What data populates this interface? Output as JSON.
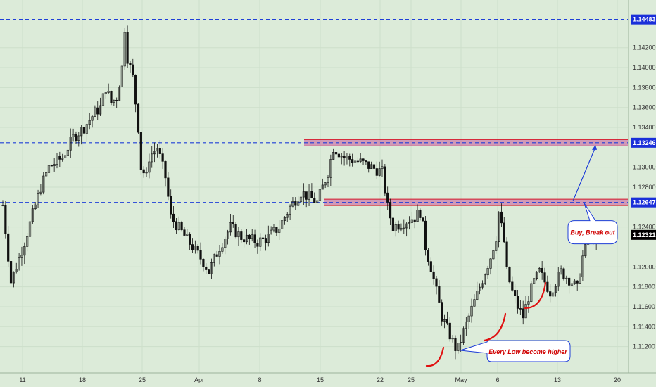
{
  "chart_data": {
    "type": "candlestick",
    "x_ticks": [
      "11",
      "18",
      "25",
      "Apr",
      "8",
      "15",
      "22",
      "25",
      "May",
      "6",
      "13",
      "20"
    ],
    "y_ticks": [
      1.142,
      1.14,
      1.138,
      1.136,
      1.134,
      1.13,
      1.128,
      1.124,
      1.12,
      1.118,
      1.116,
      1.114,
      1.112
    ],
    "y_tick_labels": [
      "1.14200",
      "1.14000",
      "1.13800",
      "1.13600",
      "1.13400",
      "1.13000",
      "1.12800",
      "1.12400",
      "1.12000",
      "1.11800",
      "1.11600",
      "1.11400",
      "1.11200"
    ],
    "ylim": [
      1.1095,
      1.1465
    ],
    "levels": [
      {
        "value": 1.14483,
        "label": "1.14483",
        "style": "dashed"
      },
      {
        "value": 1.13246,
        "label": "1.13246",
        "style": "dashed"
      },
      {
        "value": 1.12647,
        "label": "1.12647",
        "style": "dashed"
      }
    ],
    "last_price": {
      "value": 1.12321,
      "label": "1.12321"
    },
    "zones": [
      {
        "from_x": "15",
        "value": 1.13246
      },
      {
        "from_x": "15",
        "value": 1.12647
      }
    ],
    "annotations": [
      {
        "text": "Buy, Break out"
      },
      {
        "text": "Every Low become higher"
      }
    ],
    "price_path": [
      {
        "x": 0,
        "y": 1.1262
      },
      {
        "x": 1.5,
        "y": 1.1185
      },
      {
        "x": 4,
        "y": 1.1225
      },
      {
        "x": 7,
        "y": 1.128
      },
      {
        "x": 8.5,
        "y": 1.13
      },
      {
        "x": 11,
        "y": 1.131
      },
      {
        "x": 13,
        "y": 1.133
      },
      {
        "x": 15,
        "y": 1.134
      },
      {
        "x": 17,
        "y": 1.1355
      },
      {
        "x": 18,
        "y": 1.136
      },
      {
        "x": 19,
        "y": 1.138
      },
      {
        "x": 20,
        "y": 1.1365
      },
      {
        "x": 21,
        "y": 1.137
      },
      {
        "x": 22,
        "y": 1.14
      },
      {
        "x": 22.5,
        "y": 1.144
      },
      {
        "x": 23,
        "y": 1.141
      },
      {
        "x": 24,
        "y": 1.139
      },
      {
        "x": 25,
        "y": 1.134
      },
      {
        "x": 25.5,
        "y": 1.13
      },
      {
        "x": 26.5,
        "y": 1.129
      },
      {
        "x": 27,
        "y": 1.131
      },
      {
        "x": 28.5,
        "y": 1.132
      },
      {
        "x": 30,
        "y": 1.129
      },
      {
        "x": 31,
        "y": 1.125
      },
      {
        "x": 33,
        "y": 1.1235
      },
      {
        "x": 35,
        "y": 1.122
      },
      {
        "x": 37,
        "y": 1.1205
      },
      {
        "x": 38,
        "y": 1.1195
      },
      {
        "x": 40,
        "y": 1.122
      },
      {
        "x": 42,
        "y": 1.124
      },
      {
        "x": 44,
        "y": 1.123
      },
      {
        "x": 47,
        "y": 1.1225
      },
      {
        "x": 49,
        "y": 1.123
      },
      {
        "x": 51,
        "y": 1.124
      },
      {
        "x": 53,
        "y": 1.126
      },
      {
        "x": 55,
        "y": 1.1275
      },
      {
        "x": 58,
        "y": 1.1265
      },
      {
        "x": 59,
        "y": 1.128
      },
      {
        "x": 60,
        "y": 1.1295
      },
      {
        "x": 61,
        "y": 1.132
      },
      {
        "x": 63,
        "y": 1.131
      },
      {
        "x": 66,
        "y": 1.1305
      },
      {
        "x": 68,
        "y": 1.13
      },
      {
        "x": 70,
        "y": 1.1295
      },
      {
        "x": 71,
        "y": 1.126
      },
      {
        "x": 72,
        "y": 1.124
      },
      {
        "x": 74,
        "y": 1.1245
      },
      {
        "x": 76,
        "y": 1.125
      },
      {
        "x": 77,
        "y": 1.1255
      },
      {
        "x": 77.5,
        "y": 1.124
      },
      {
        "x": 78,
        "y": 1.122
      },
      {
        "x": 79,
        "y": 1.12
      },
      {
        "x": 80,
        "y": 1.1175
      },
      {
        "x": 81,
        "y": 1.115
      },
      {
        "x": 82,
        "y": 1.1138
      },
      {
        "x": 83,
        "y": 1.1125
      },
      {
        "x": 83.8,
        "y": 1.1115
      },
      {
        "x": 85,
        "y": 1.1135
      },
      {
        "x": 86,
        "y": 1.115
      },
      {
        "x": 87,
        "y": 1.1165
      },
      {
        "x": 88,
        "y": 1.118
      },
      {
        "x": 89,
        "y": 1.1195
      },
      {
        "x": 90,
        "y": 1.121
      },
      {
        "x": 91,
        "y": 1.123
      },
      {
        "x": 91.5,
        "y": 1.1255
      },
      {
        "x": 92.5,
        "y": 1.1225
      },
      {
        "x": 93,
        "y": 1.1195
      },
      {
        "x": 94,
        "y": 1.1175
      },
      {
        "x": 95,
        "y": 1.116
      },
      {
        "x": 96,
        "y": 1.115
      },
      {
        "x": 97,
        "y": 1.117
      },
      {
        "x": 98,
        "y": 1.1185
      },
      {
        "x": 99,
        "y": 1.1195
      },
      {
        "x": 100,
        "y": 1.1185
      },
      {
        "x": 101,
        "y": 1.1175
      },
      {
        "x": 102,
        "y": 1.1185
      },
      {
        "x": 103,
        "y": 1.1195
      },
      {
        "x": 104,
        "y": 1.119
      },
      {
        "x": 105,
        "y": 1.1185
      },
      {
        "x": 106,
        "y": 1.1178
      },
      {
        "x": 106.5,
        "y": 1.1195
      },
      {
        "x": 107,
        "y": 1.121
      },
      {
        "x": 108,
        "y": 1.1225
      },
      {
        "x": 108.5,
        "y": 1.124
      },
      {
        "x": 109,
        "y": 1.123
      },
      {
        "x": 109.5,
        "y": 1.1232
      }
    ]
  },
  "colors": {
    "background": "#dcebd9",
    "grid": "#cddfca",
    "candle": "#111111",
    "level_line": "#1f3fd8",
    "zone_fill": "#c8559a",
    "zone_edge": "#d61a2a",
    "label_bg": "#1a2fd9",
    "last_bg": "#000000",
    "arrow": "#1f3fd8",
    "curve": "#e01010"
  }
}
